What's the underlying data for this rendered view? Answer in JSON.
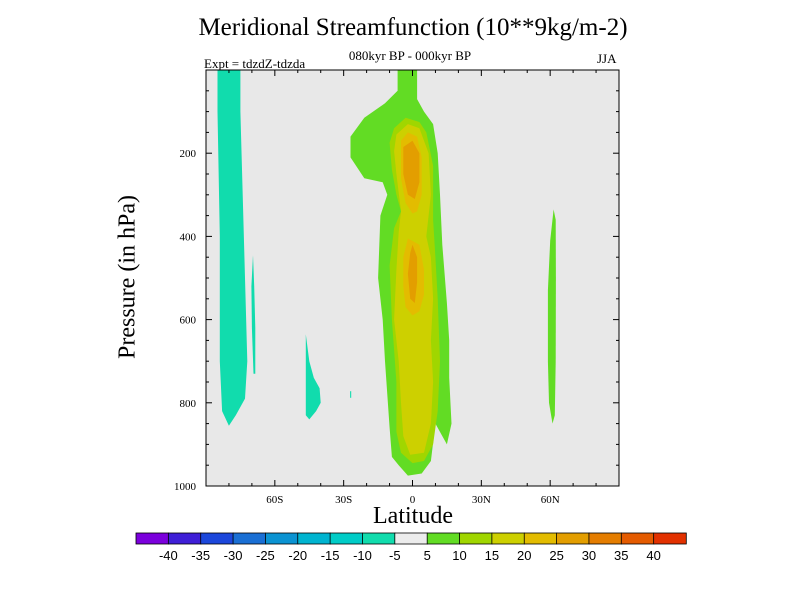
{
  "chart_data": {
    "type": "heatmap",
    "title": "Meridional Streamfunction (10**9kg/m-2)",
    "subtitle": "080kyr BP - 000kyr BP",
    "left_label": "Expt = tdzdZ-tdzda",
    "right_label": "JJA",
    "xlabel": "Latitude",
    "ylabel": "Pressure (in hPa)",
    "xlim": [
      -90,
      90
    ],
    "ylim": [
      1000,
      0
    ],
    "x_ticks": [
      {
        "value": -60,
        "label": "60S"
      },
      {
        "value": -30,
        "label": "30S"
      },
      {
        "value": 0,
        "label": "0"
      },
      {
        "value": 30,
        "label": "30N"
      },
      {
        "value": 60,
        "label": "60N"
      }
    ],
    "y_ticks": [
      {
        "value": 200,
        "label": "200"
      },
      {
        "value": 400,
        "label": "400"
      },
      {
        "value": 600,
        "label": "600"
      },
      {
        "value": 800,
        "label": "800"
      },
      {
        "value": 1000,
        "label": "1000"
      }
    ],
    "colorbar": {
      "colors": [
        "#7b00dc",
        "#3f1fd7",
        "#1c47db",
        "#1a6fd4",
        "#0b93d2",
        "#00b4d0",
        "#00ccc7",
        "#11dcad",
        "#ececec",
        "#62dc24",
        "#a0d600",
        "#cdd000",
        "#e3bc00",
        "#e39e00",
        "#e47d00",
        "#e45b00",
        "#e23100"
      ],
      "labels": [
        "-40",
        "-35",
        "-30",
        "-25",
        "-20",
        "-15",
        "-10",
        "-5",
        "5",
        "10",
        "15",
        "20",
        "25",
        "30",
        "35",
        "40"
      ]
    },
    "contours": [
      {
        "name": "neg-band-far-south",
        "level": "-5 to -10",
        "color": "#11dcad",
        "points": [
          [
            -85,
            0
          ],
          [
            -75,
            0
          ],
          [
            -75,
            100
          ],
          [
            -74,
            300
          ],
          [
            -73,
            500
          ],
          [
            -72,
            700
          ],
          [
            -73,
            790
          ],
          [
            -77,
            830
          ],
          [
            -80,
            855
          ],
          [
            -83,
            820
          ],
          [
            -84,
            700
          ],
          [
            -84,
            400
          ],
          [
            -85,
            100
          ]
        ]
      },
      {
        "name": "neg-sliver-south",
        "level": "-5 to -10",
        "color": "#11dcad",
        "points": [
          [
            -69.5,
            445
          ],
          [
            -69,
            520
          ],
          [
            -68.5,
            620
          ],
          [
            -68.5,
            730
          ],
          [
            -69.3,
            730
          ],
          [
            -70,
            620
          ],
          [
            -70.2,
            520
          ]
        ]
      },
      {
        "name": "neg-patch-midsouth",
        "level": "-5 to -10",
        "color": "#11dcad",
        "points": [
          [
            -46.5,
            635
          ],
          [
            -45,
            700
          ],
          [
            -43,
            740
          ],
          [
            -40.5,
            765
          ],
          [
            -40,
            800
          ],
          [
            -42,
            820
          ],
          [
            -45,
            840
          ],
          [
            -46.5,
            830
          ],
          [
            -46.5,
            750
          ]
        ]
      },
      {
        "name": "neg-dot",
        "level": "-5 to -10",
        "color": "#11dcad",
        "points": [
          [
            -27.2,
            772
          ],
          [
            -26.7,
            772
          ],
          [
            -26.7,
            788
          ],
          [
            -27.2,
            788
          ]
        ]
      },
      {
        "name": "pos-band-60N",
        "level": "5 to 10",
        "color": "#62dc24",
        "points": [
          [
            61.5,
            335
          ],
          [
            60,
            410
          ],
          [
            59,
            530
          ],
          [
            59,
            700
          ],
          [
            59.5,
            800
          ],
          [
            61,
            850
          ],
          [
            62,
            830
          ],
          [
            62.4,
            700
          ],
          [
            62.5,
            500
          ],
          [
            62.4,
            360
          ]
        ]
      },
      {
        "name": "pos-core-5",
        "level": "5 to 10",
        "color": "#62dc24",
        "points": [
          [
            -6.5,
            0
          ],
          [
            2,
            0
          ],
          [
            2,
            70
          ],
          [
            5,
            100
          ],
          [
            9,
            130
          ],
          [
            11,
            200
          ],
          [
            12,
            300
          ],
          [
            13,
            420
          ],
          [
            15,
            560
          ],
          [
            16,
            650
          ],
          [
            16,
            740
          ],
          [
            17,
            850
          ],
          [
            15,
            900
          ],
          [
            10,
            850
          ],
          [
            8,
            940
          ],
          [
            4,
            970
          ],
          [
            -2,
            975
          ],
          [
            -6,
            950
          ],
          [
            -9,
            930
          ],
          [
            -10,
            860
          ],
          [
            -11,
            780
          ],
          [
            -12,
            700
          ],
          [
            -13,
            600
          ],
          [
            -15,
            500
          ],
          [
            -14,
            350
          ],
          [
            -11,
            300
          ],
          [
            -13,
            270
          ],
          [
            -21,
            260
          ],
          [
            -27,
            210
          ],
          [
            -27,
            160
          ],
          [
            -21,
            115
          ],
          [
            -12,
            80
          ],
          [
            -6.5,
            50
          ]
        ]
      },
      {
        "name": "pos-core-10",
        "level": "10 to 15",
        "color": "#a0d600",
        "points": [
          [
            -8,
            140
          ],
          [
            -3,
            115
          ],
          [
            3,
            125
          ],
          [
            6,
            150
          ],
          [
            9,
            230
          ],
          [
            9,
            360
          ],
          [
            10,
            450
          ],
          [
            11,
            550
          ],
          [
            12,
            700
          ],
          [
            11,
            820
          ],
          [
            9,
            900
          ],
          [
            5,
            940
          ],
          [
            0,
            945
          ],
          [
            -5,
            920
          ],
          [
            -7,
            870
          ],
          [
            -7,
            750
          ],
          [
            -9,
            600
          ],
          [
            -10,
            470
          ],
          [
            -8,
            380
          ],
          [
            -5,
            340
          ],
          [
            -7,
            300
          ],
          [
            -9,
            240
          ],
          [
            -10,
            175
          ]
        ]
      },
      {
        "name": "pos-core-15",
        "level": "15 to 20",
        "color": "#cdd000",
        "points": [
          [
            -7,
            155
          ],
          [
            -2,
            130
          ],
          [
            3,
            140
          ],
          [
            7,
            200
          ],
          [
            8,
            300
          ],
          [
            7,
            350
          ],
          [
            6,
            400
          ],
          [
            8,
            450
          ],
          [
            9,
            550
          ],
          [
            8,
            650
          ],
          [
            9,
            750
          ],
          [
            8,
            850
          ],
          [
            5,
            920
          ],
          [
            -1,
            925
          ],
          [
            -4,
            880
          ],
          [
            -5,
            800
          ],
          [
            -6,
            700
          ],
          [
            -8,
            600
          ],
          [
            -7,
            480
          ],
          [
            -6,
            390
          ],
          [
            -5,
            340
          ],
          [
            -7,
            250
          ],
          [
            -8,
            195
          ]
        ]
      },
      {
        "name": "pos-core-20",
        "level": "20 to 25",
        "color": "#e3bc00",
        "points": [
          [
            -5,
            170
          ],
          [
            -2,
            150
          ],
          [
            2,
            160
          ],
          [
            4,
            210
          ],
          [
            4,
            300
          ],
          [
            2,
            340
          ],
          [
            0,
            345
          ],
          [
            -3,
            320
          ],
          [
            -5,
            260
          ]
        ]
      },
      {
        "name": "pos-core-20-low",
        "level": "20 to 25",
        "color": "#e3bc00",
        "points": [
          [
            -2,
            405
          ],
          [
            3,
            420
          ],
          [
            5,
            480
          ],
          [
            5,
            540
          ],
          [
            3,
            580
          ],
          [
            0,
            590
          ],
          [
            -3,
            570
          ],
          [
            -4,
            520
          ],
          [
            -4,
            450
          ]
        ]
      },
      {
        "name": "pos-core-25",
        "level": "25 to 30",
        "color": "#e39e00",
        "points": [
          [
            -4,
            185
          ],
          [
            0,
            170
          ],
          [
            3,
            200
          ],
          [
            3,
            270
          ],
          [
            1,
            310
          ],
          [
            -2,
            300
          ],
          [
            -4,
            250
          ]
        ]
      },
      {
        "name": "pos-core-25-low",
        "level": "25 to 30",
        "color": "#e39e00",
        "points": [
          [
            0,
            420
          ],
          [
            2,
            450
          ],
          [
            2,
            510
          ],
          [
            1,
            560
          ],
          [
            -1,
            550
          ],
          [
            -2,
            490
          ],
          [
            -1,
            440
          ]
        ]
      }
    ]
  }
}
